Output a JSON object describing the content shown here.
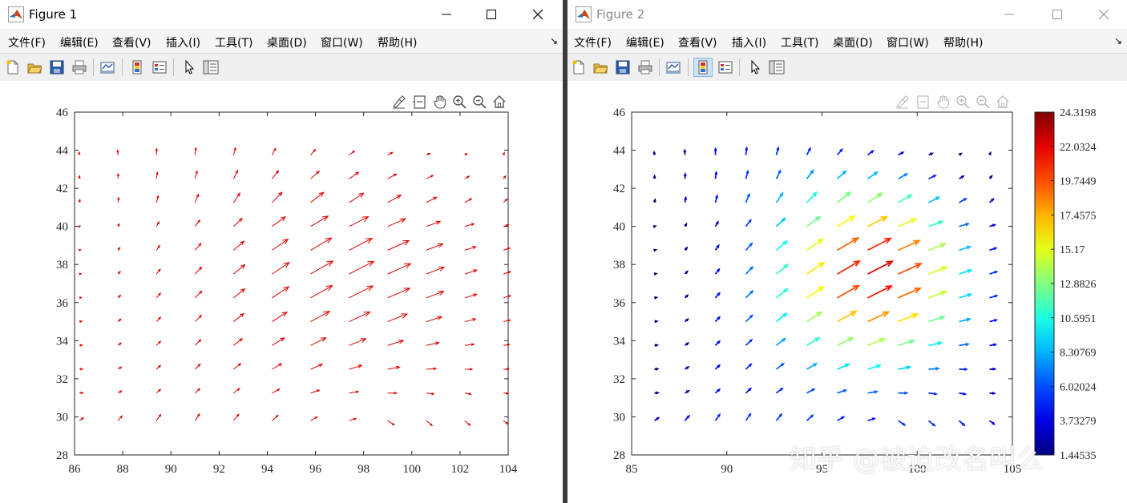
{
  "figure1": {
    "title": "Figure 1",
    "menus": [
      "文件(F)",
      "编辑(E)",
      "查看(V)",
      "插入(I)",
      "工具(T)",
      "桌面(D)",
      "窗口(W)",
      "帮助(H)"
    ],
    "chart_data": {
      "type": "quiver",
      "color": "#e00000",
      "xlim": [
        86,
        104
      ],
      "ylim": [
        28,
        46
      ],
      "xticks": [
        "86",
        "88",
        "90",
        "92",
        "94",
        "96",
        "98",
        "100",
        "102",
        "104"
      ],
      "yticks": [
        "28",
        "30",
        "32",
        "34",
        "36",
        "38",
        "40",
        "42",
        "44",
        "46"
      ],
      "x": [
        86.2,
        87.8,
        89.4,
        91.0,
        92.6,
        94.2,
        95.8,
        97.4,
        99.0,
        100.6,
        102.2,
        103.8
      ],
      "y": [
        29.8,
        31.25,
        32.5,
        33.75,
        35.0,
        36.25,
        37.5,
        38.75,
        40.0,
        41.25,
        42.5,
        43.75
      ]
    }
  },
  "figure2": {
    "title": "Figure 2",
    "menus": [
      "文件(F)",
      "编辑(E)",
      "查看(V)",
      "插入(I)",
      "工具(T)",
      "桌面(D)",
      "窗口(W)",
      "帮助(H)"
    ],
    "chart_data": {
      "type": "quiver",
      "colormap": "jet",
      "xlim": [
        85,
        105
      ],
      "ylim": [
        28,
        46
      ],
      "xticks": [
        "85",
        "90",
        "95",
        "100",
        "105"
      ],
      "yticks": [
        "28",
        "30",
        "32",
        "34",
        "36",
        "38",
        "40",
        "42",
        "44",
        "46"
      ],
      "colorbar_ticks": [
        "24.3198",
        "22.0324",
        "19.7449",
        "17.4575",
        "15.17",
        "12.8826",
        "10.5951",
        "8.30769",
        "6.02024",
        "3.73279",
        "1.44535"
      ],
      "colorbar_range": [
        1.44535,
        24.3198
      ],
      "x": [
        86.2,
        87.8,
        89.4,
        91.0,
        92.6,
        94.2,
        95.8,
        97.4,
        99.0,
        100.6,
        102.2,
        103.8
      ],
      "y": [
        29.8,
        31.25,
        32.5,
        33.75,
        35.0,
        36.25,
        37.5,
        38.75,
        40.0,
        41.25,
        42.5,
        43.75
      ]
    }
  },
  "watermark": "知乎 @被迫改名叫么"
}
